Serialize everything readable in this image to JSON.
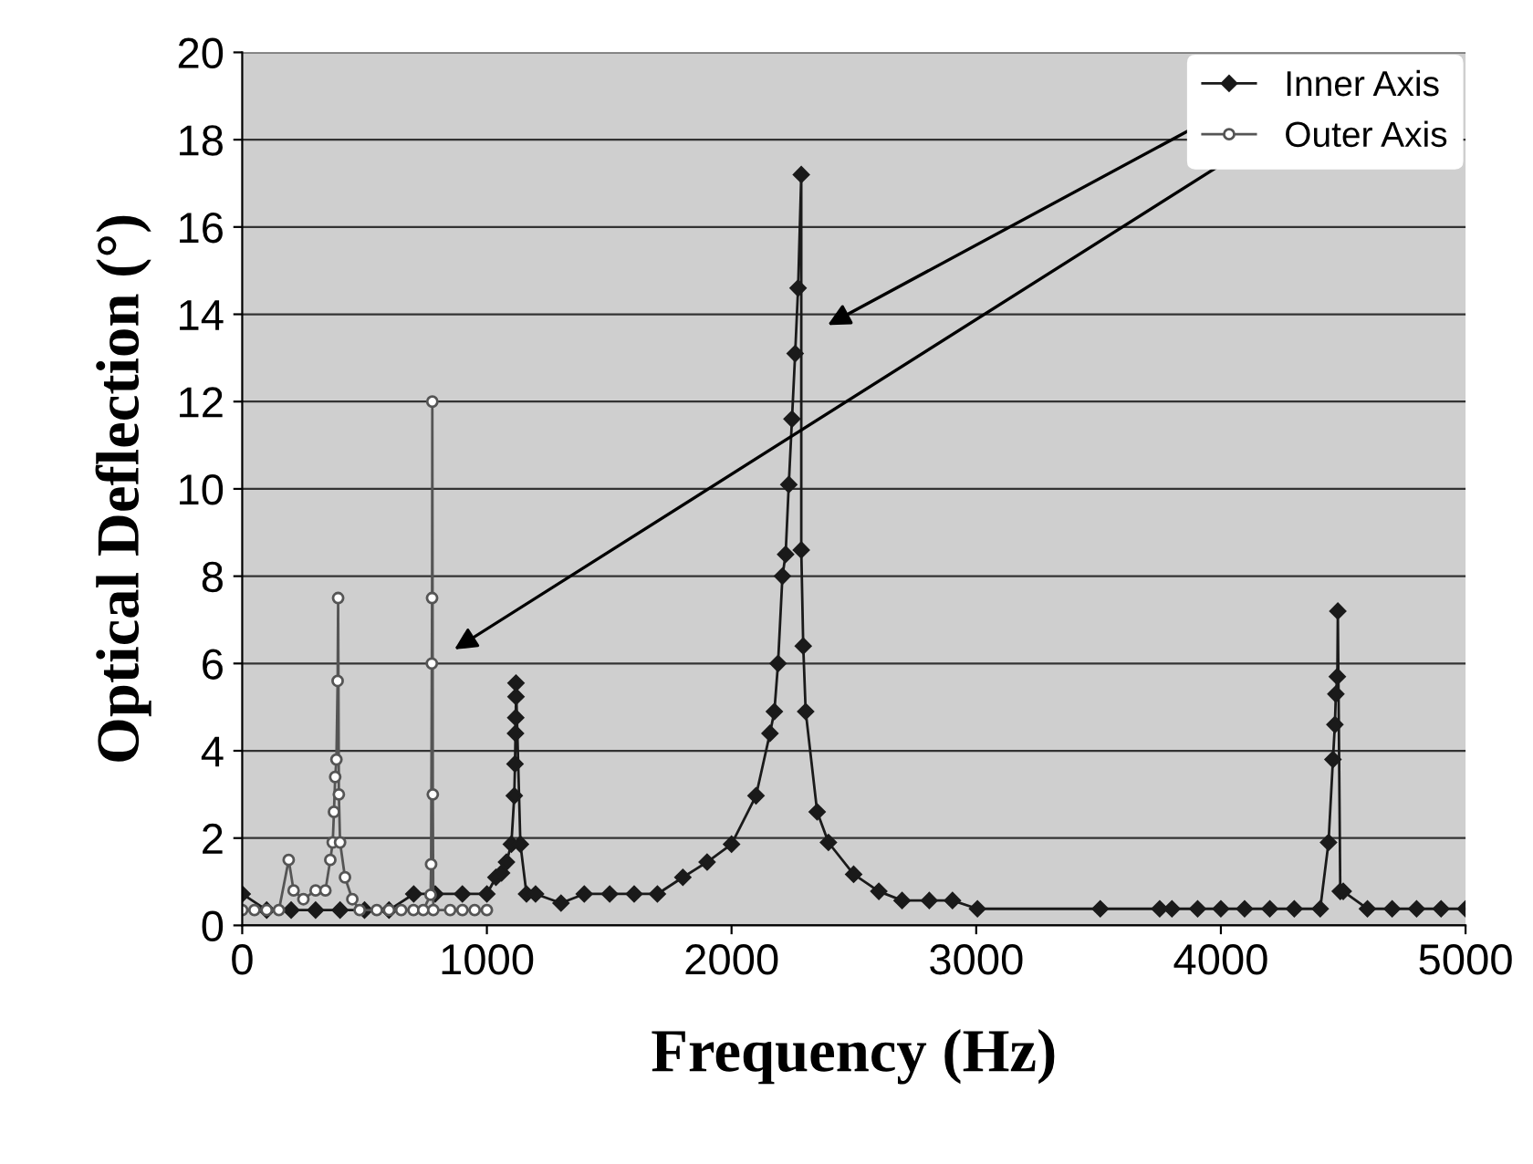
{
  "chart_data": {
    "type": "line",
    "xlabel": "Frequency (Hz)",
    "ylabel": "Optical Deflection (°)",
    "xlim": [
      0,
      5000
    ],
    "xticks": [
      0,
      1000,
      2000,
      3000,
      4000,
      5000
    ],
    "ylim": [
      0,
      20
    ],
    "yticks": [
      0,
      2,
      4,
      6,
      8,
      10,
      12,
      14,
      16,
      18,
      20
    ],
    "grid": "y",
    "legend": "top right",
    "series": [
      {
        "name": "Inner Axis",
        "color": "#1a1a1a",
        "marker": "diamond",
        "x": [
          0,
          100,
          200,
          300,
          400,
          500,
          600,
          701,
          789,
          900,
          1000,
          1037,
          1060,
          1080,
          1100,
          1112,
          1115,
          1117,
          1118,
          1119,
          1119,
          1137,
          1162,
          1199,
          1303,
          1398,
          1502,
          1602,
          1697,
          1801,
          1900,
          2000,
          2100,
          2157,
          2175,
          2190,
          2208,
          2221,
          2234,
          2247,
          2260,
          2272,
          2285,
          2285,
          2293,
          2303,
          2350,
          2396,
          2499,
          2602,
          2697,
          2808,
          2903,
          3005,
          3507,
          3750,
          3800,
          3905,
          4000,
          4097,
          4200,
          4300,
          4406,
          4440,
          4458,
          4466,
          4470,
          4476,
          4478,
          4488,
          4500,
          4599,
          4700,
          4800,
          4900,
          5000
        ],
        "values": [
          0.72,
          0.35,
          0.35,
          0.35,
          0.35,
          0.35,
          0.35,
          0.72,
          0.72,
          0.72,
          0.72,
          1.1,
          1.2,
          1.45,
          1.86,
          2.97,
          3.7,
          4.4,
          4.76,
          5.24,
          5.55,
          1.86,
          0.72,
          0.72,
          0.51,
          0.72,
          0.72,
          0.72,
          0.72,
          1.1,
          1.45,
          1.86,
          2.97,
          4.4,
          4.9,
          6.0,
          8.0,
          8.5,
          10.1,
          11.6,
          13.1,
          14.6,
          17.2,
          8.6,
          6.4,
          4.9,
          2.6,
          1.9,
          1.17,
          0.78,
          0.57,
          0.57,
          0.57,
          0.38,
          0.38,
          0.38,
          0.38,
          0.38,
          0.38,
          0.38,
          0.38,
          0.38,
          0.38,
          1.9,
          3.8,
          4.6,
          5.3,
          5.7,
          7.2,
          0.78,
          0.78,
          0.38,
          0.38,
          0.38,
          0.38,
          0.38
        ]
      },
      {
        "name": "Outer Axis",
        "color": "#555555",
        "marker": "circle",
        "x": [
          0,
          50,
          100,
          150,
          190,
          210,
          250,
          300,
          340,
          360,
          370,
          375,
          380,
          385,
          390,
          392,
          395,
          400,
          420,
          450,
          480,
          550,
          600,
          650,
          700,
          740,
          770,
          772,
          775,
          776,
          777,
          779,
          781,
          850,
          900,
          950,
          1000
        ],
        "values": [
          0.35,
          0.35,
          0.35,
          0.35,
          1.5,
          0.8,
          0.6,
          0.8,
          0.8,
          1.5,
          1.9,
          2.6,
          3.4,
          3.8,
          5.6,
          7.5,
          3.0,
          1.9,
          1.1,
          0.6,
          0.35,
          0.35,
          0.35,
          0.35,
          0.35,
          0.35,
          0.7,
          1.4,
          6.0,
          7.5,
          12.0,
          3.0,
          0.35,
          0.35,
          0.35,
          0.35,
          0.35
        ]
      }
    ]
  }
}
